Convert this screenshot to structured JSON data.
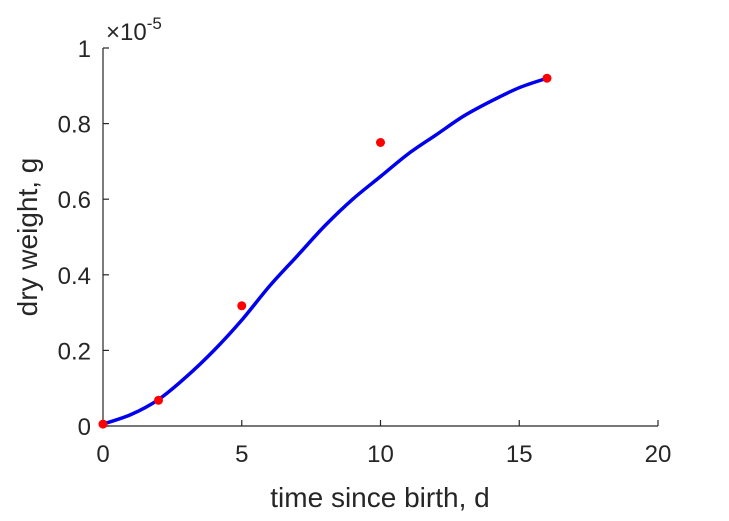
{
  "chart_data": {
    "type": "line",
    "title": "",
    "xlabel": "time since birth, d",
    "ylabel": "dry weight, g",
    "xlim": [
      0,
      20
    ],
    "ylim": [
      0,
      1
    ],
    "xticks": [
      0,
      5,
      10,
      15,
      20
    ],
    "xtick_labels": [
      "0",
      "5",
      "10",
      "15",
      "20"
    ],
    "yticks": [
      0,
      0.2,
      0.4,
      0.6,
      0.8,
      1
    ],
    "ytick_labels": [
      "0",
      "0.2",
      "0.4",
      "0.6",
      "0.8",
      "1"
    ],
    "y_exponent_label": "×10",
    "y_exponent_power": "-5",
    "grid": false,
    "legend": "none",
    "series": [
      {
        "kind": "line",
        "color": "#0000ee",
        "x": [
          0,
          1,
          2,
          3,
          4,
          5,
          6,
          7,
          8,
          9,
          10,
          11,
          12,
          13,
          14,
          15,
          16
        ],
        "y": [
          0.005,
          0.03,
          0.07,
          0.13,
          0.2,
          0.28,
          0.37,
          0.45,
          0.53,
          0.6,
          0.66,
          0.72,
          0.77,
          0.82,
          0.86,
          0.895,
          0.92
        ]
      },
      {
        "kind": "scatter",
        "color": "#ff0000",
        "x": [
          0,
          2,
          5,
          10,
          16
        ],
        "y": [
          0.005,
          0.068,
          0.318,
          0.75,
          0.92
        ]
      }
    ]
  }
}
